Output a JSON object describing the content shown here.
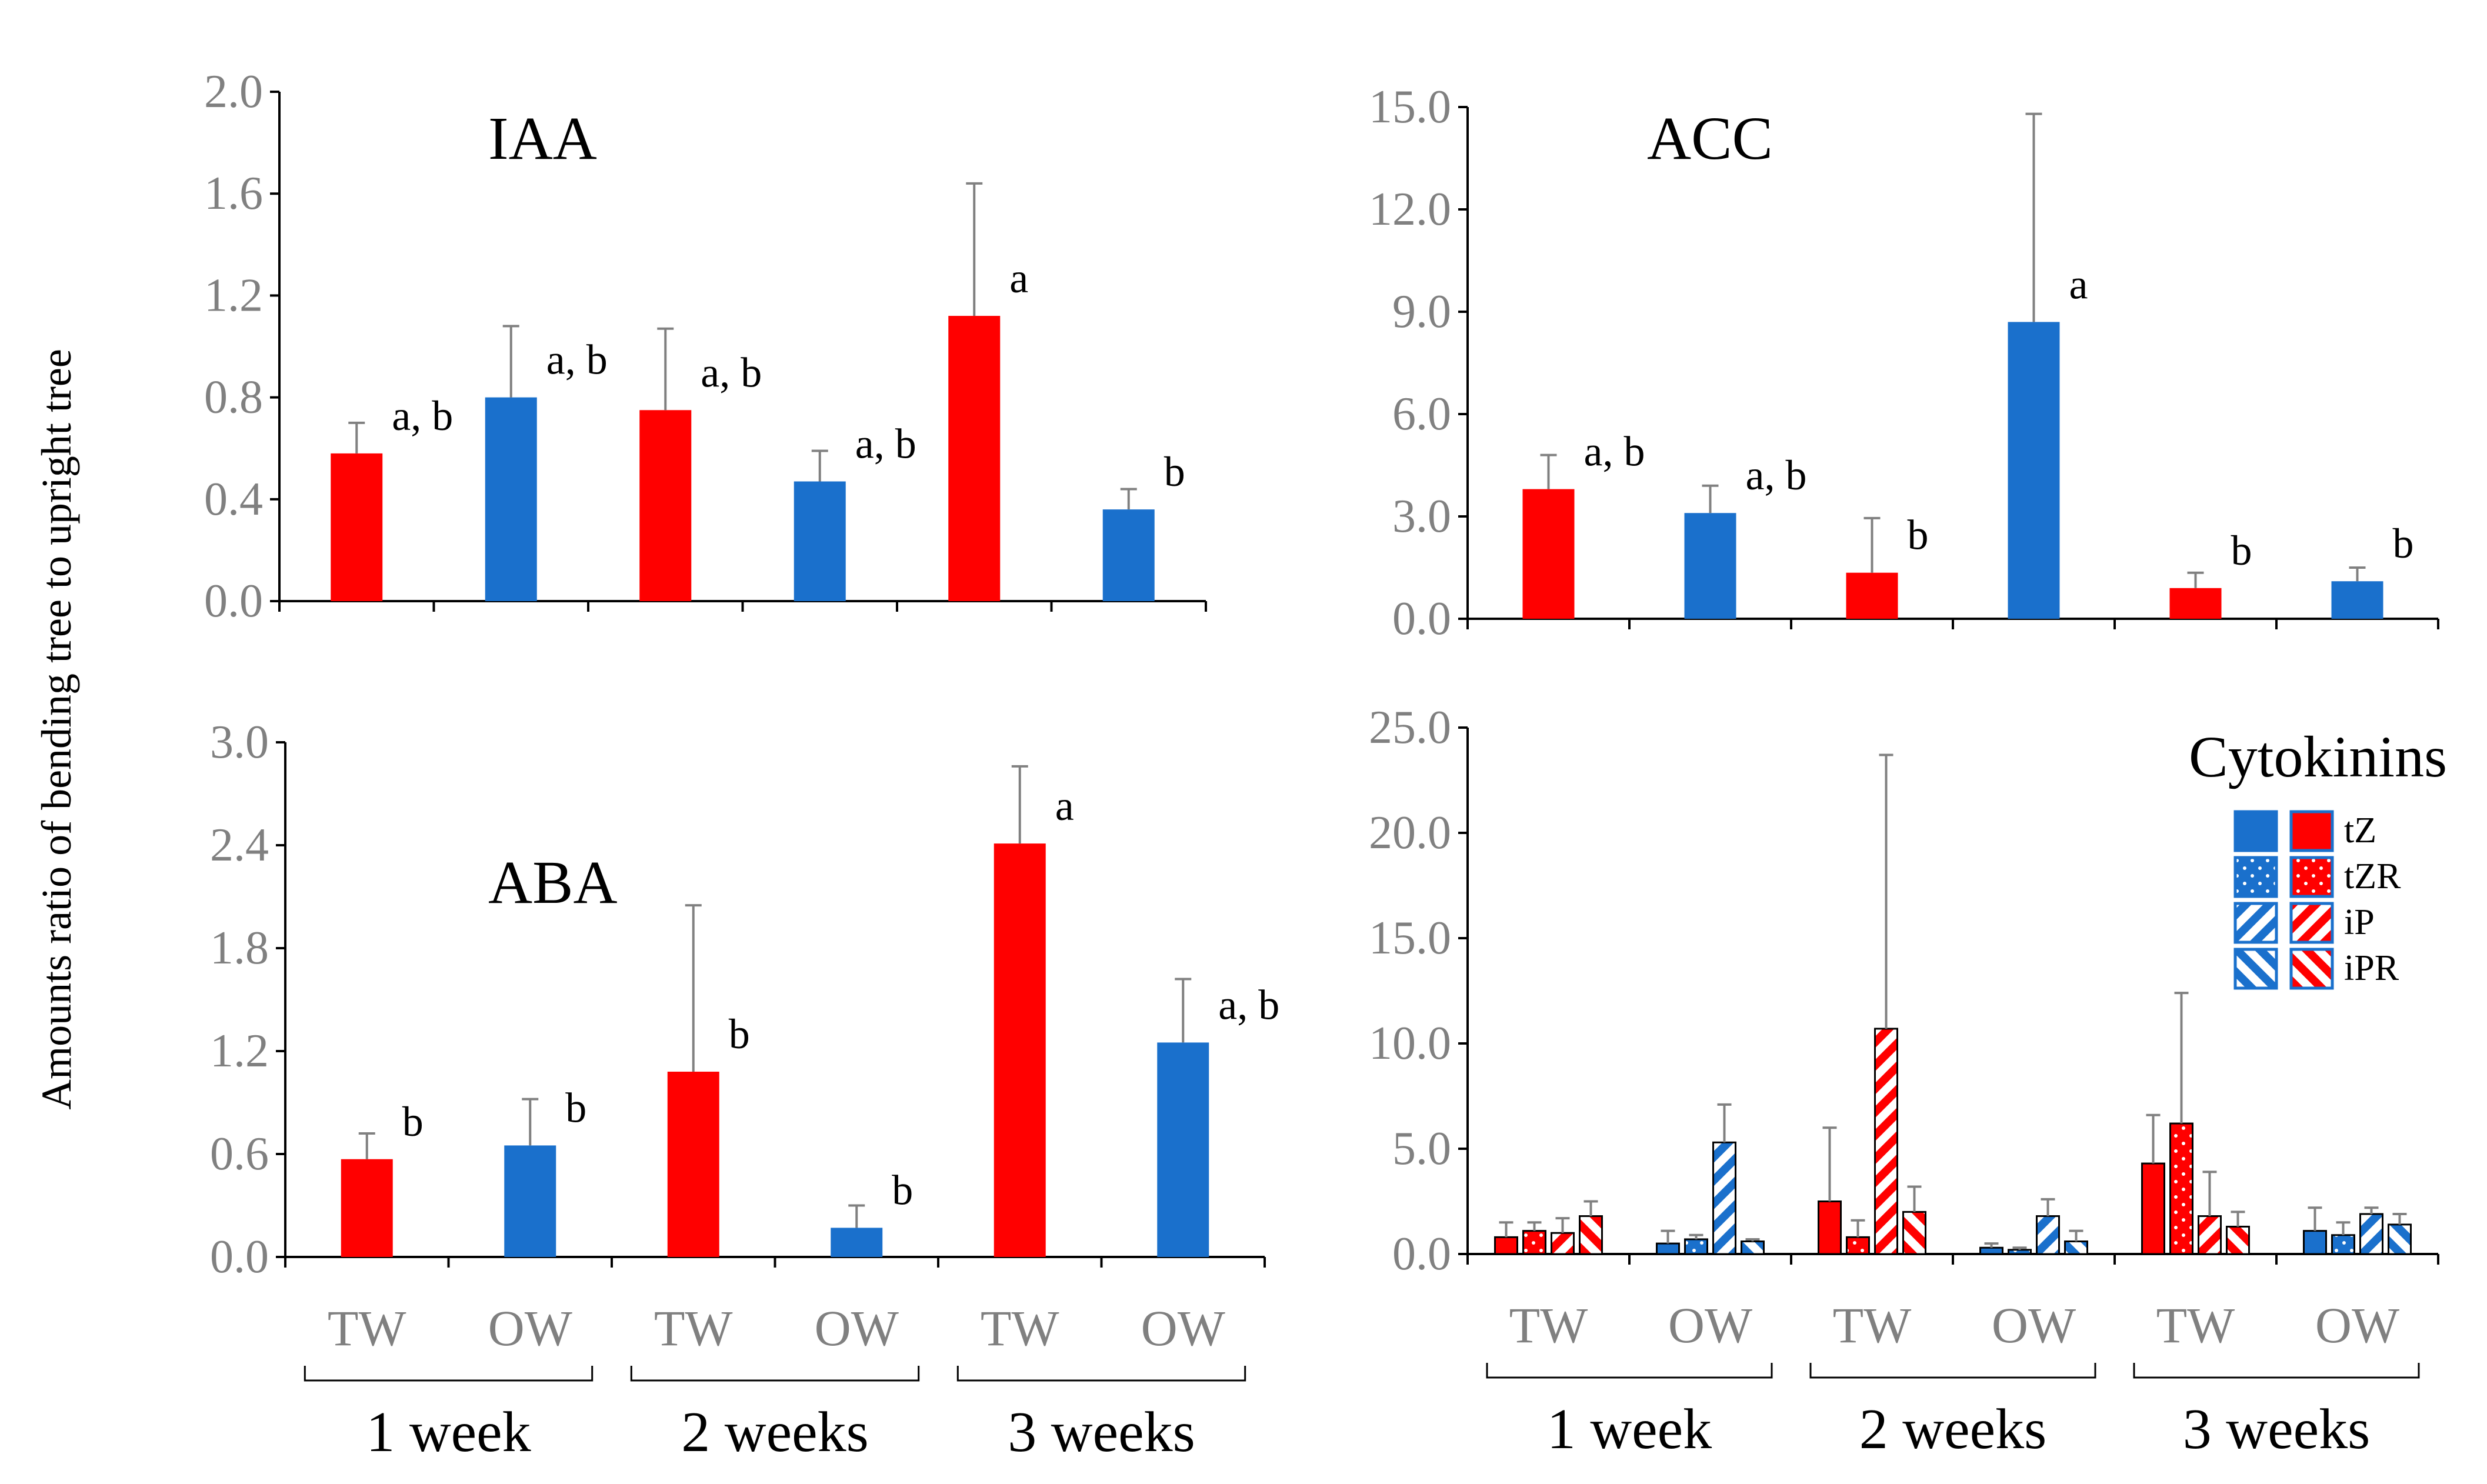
{
  "figure": {
    "ylabel": "Amounts ratio of bending tree to upright tree",
    "category_labels": [
      "TW",
      "OW",
      "TW",
      "OW",
      "TW",
      "OW"
    ],
    "group_labels": [
      "1 week",
      "2 weeks",
      "3 weeks"
    ]
  },
  "colors": {
    "TW": "#ff0000",
    "OW": "#1a70cc",
    "axis": "#000000",
    "error": "#808080",
    "tick_text": "#808080"
  },
  "chart_data": [
    {
      "panel": "IAA",
      "type": "bar",
      "title": "IAA",
      "ylim": [
        0,
        2.0
      ],
      "yticks": [
        "0.0",
        "0.4",
        "0.8",
        "1.2",
        "1.6",
        "2.0"
      ],
      "categories": [
        "TW",
        "OW",
        "TW",
        "OW",
        "TW",
        "OW"
      ],
      "groups": [
        "1 week",
        "2 weeks",
        "3 weeks"
      ],
      "values": [
        0.58,
        0.8,
        0.75,
        0.47,
        1.12,
        0.36
      ],
      "errors": [
        0.12,
        0.28,
        0.32,
        0.12,
        0.52,
        0.08
      ],
      "labels": [
        "a, b",
        "a, b",
        "a, b",
        "a, b",
        "a",
        "b"
      ]
    },
    {
      "panel": "ACC",
      "type": "bar",
      "title": "ACC",
      "ylim": [
        0,
        15.0
      ],
      "yticks": [
        "0.0",
        "3.0",
        "6.0",
        "9.0",
        "12.0",
        "15.0"
      ],
      "categories": [
        "TW",
        "OW",
        "TW",
        "OW",
        "TW",
        "OW"
      ],
      "groups": [
        "1 week",
        "2 weeks",
        "3 weeks"
      ],
      "values": [
        3.8,
        3.1,
        1.35,
        8.7,
        0.9,
        1.1
      ],
      "errors": [
        1.0,
        0.8,
        1.6,
        6.1,
        0.45,
        0.4
      ],
      "labels": [
        "a, b",
        "a, b",
        "b",
        "a",
        "b",
        "b"
      ]
    },
    {
      "panel": "ABA",
      "type": "bar",
      "title": "ABA",
      "ylim": [
        0,
        3.0
      ],
      "yticks": [
        "0.0",
        "0.6",
        "1.2",
        "1.8",
        "2.4",
        "3.0"
      ],
      "categories": [
        "TW",
        "OW",
        "TW",
        "OW",
        "TW",
        "OW"
      ],
      "groups": [
        "1 week",
        "2 weeks",
        "3 weeks"
      ],
      "values": [
        0.57,
        0.65,
        1.08,
        0.17,
        2.41,
        1.25
      ],
      "errors": [
        0.15,
        0.27,
        0.97,
        0.13,
        0.45,
        0.37
      ],
      "labels": [
        "b",
        "b",
        "b",
        "b",
        "a",
        "a, b"
      ]
    },
    {
      "panel": "Cytokinins",
      "type": "bar",
      "title": "Cytokinins",
      "ylim": [
        0,
        25.0
      ],
      "yticks": [
        "0.0",
        "5.0",
        "10.0",
        "15.0",
        "20.0",
        "25.0"
      ],
      "categories": [
        "TW",
        "OW",
        "TW",
        "OW",
        "TW",
        "OW"
      ],
      "groups": [
        "1 week",
        "2 weeks",
        "3 weeks"
      ],
      "series": [
        {
          "name": "tZ",
          "pattern": "solid",
          "values": [
            0.8,
            0.5,
            2.5,
            0.3,
            4.3,
            1.1
          ],
          "errors": [
            0.7,
            0.6,
            3.5,
            0.2,
            2.3,
            1.1
          ]
        },
        {
          "name": "tZR",
          "pattern": "dots",
          "values": [
            1.1,
            0.7,
            0.8,
            0.2,
            6.2,
            0.9
          ],
          "errors": [
            0.4,
            0.2,
            0.8,
            0.1,
            6.2,
            0.6
          ]
        },
        {
          "name": "iP",
          "pattern": "stripes",
          "values": [
            1.0,
            5.3,
            10.7,
            1.8,
            1.8,
            1.9
          ],
          "errors": [
            0.7,
            1.8,
            13.0,
            0.8,
            2.1,
            0.3
          ]
        },
        {
          "name": "iPR",
          "pattern": "stripes-alt",
          "values": [
            1.8,
            0.6,
            2.0,
            0.6,
            1.3,
            1.4
          ],
          "errors": [
            0.7,
            0.1,
            1.2,
            0.5,
            0.7,
            0.5
          ]
        }
      ],
      "legend": {
        "title": "Cytokinins",
        "entries": [
          "tZ",
          "tZR",
          "iP",
          "iPR"
        ],
        "position": "top-right"
      }
    }
  ]
}
